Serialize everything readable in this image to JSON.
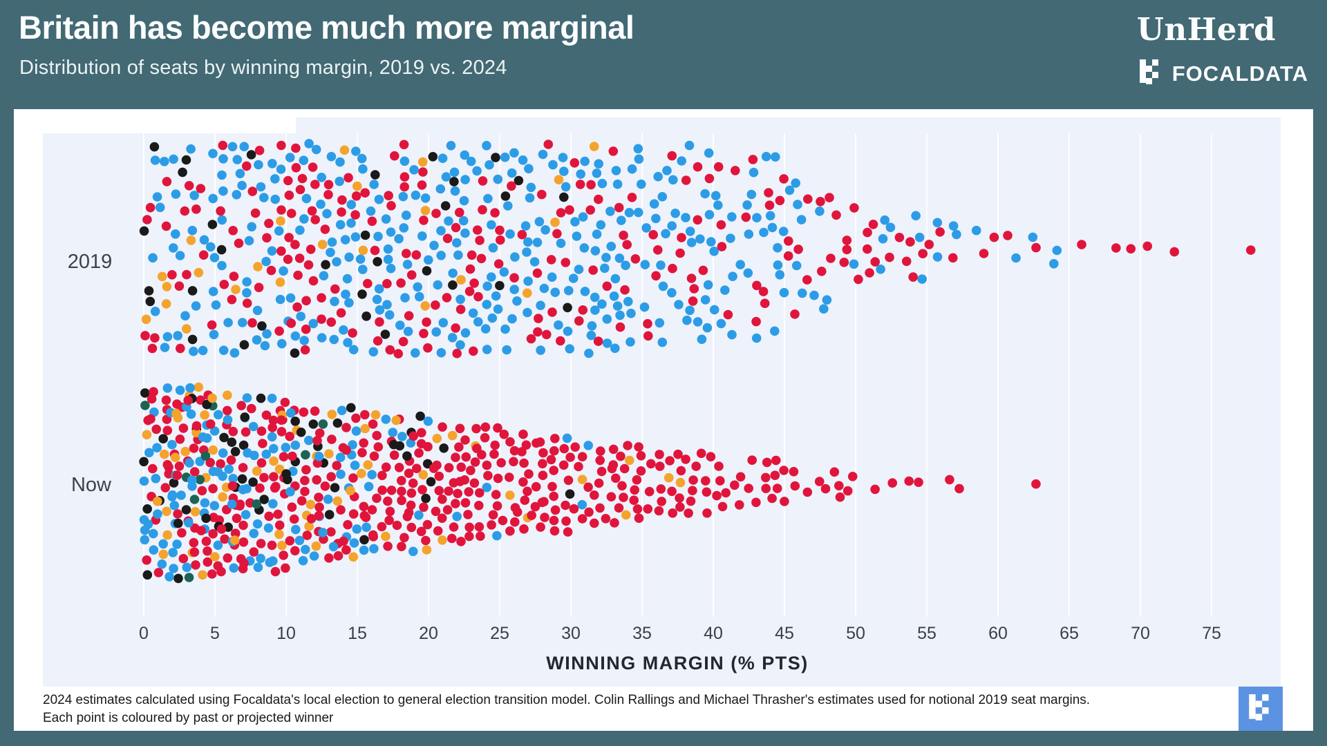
{
  "header": {
    "title": "Britain has become much more marginal",
    "subtitle": "Distribution of seats by winning margin, 2019 vs. 2024",
    "brand_unherd": "UnHerd",
    "brand_focaldata": "FOCALDATA"
  },
  "footer": {
    "line1": "2024 estimates calculated using Focaldata's local election to general election transition model. Colin Rallings and Michael Thrasher's estimates used for notional 2019 seat margins.",
    "line2": "Each point is coloured by past or projected winner"
  },
  "colors": {
    "header_teal": "#426974",
    "card_white": "#ffffff",
    "panel_background": "#eef2fb",
    "gridline": "#ffffff",
    "axis_text": "#3a3f45",
    "badge_blue": "#5b93e2"
  },
  "chart_data": {
    "type": "beeswarm",
    "title": "Britain has become much more marginal",
    "subtitle": "Distribution of seats by winning margin, 2019 vs. 2024",
    "xlabel": "WINNING MARGIN (% PTS)",
    "x_ticks": [
      0,
      5,
      10,
      15,
      20,
      25,
      30,
      35,
      40,
      45,
      50,
      55,
      60,
      65,
      70,
      75
    ],
    "x_range": [
      0,
      80
    ],
    "grid": true,
    "legend": "none",
    "point_unit": "one parliamentary seat, coloured by past or projected winner",
    "color_order": [
      "blue",
      "red",
      "black",
      "orange",
      "green"
    ],
    "party_colors": {
      "blue": "#2d9ce6",
      "red": "#e0153c",
      "black": "#1a1a1a",
      "orange": "#f4a32c",
      "green": "#1d6355"
    },
    "rows": [
      {
        "label": "2019",
        "total_seats": 650,
        "bins": [
          {
            "x0": 0,
            "x1": 5,
            "count": 61,
            "half": 150,
            "w": [
              0.4,
              0.42,
              0.11,
              0.06,
              0.01
            ]
          },
          {
            "x0": 5,
            "x1": 10,
            "count": 66,
            "half": 152,
            "w": [
              0.44,
              0.4,
              0.1,
              0.05,
              0.01
            ]
          },
          {
            "x0": 10,
            "x1": 15,
            "count": 82,
            "half": 153,
            "w": [
              0.48,
              0.4,
              0.08,
              0.04,
              0
            ]
          },
          {
            "x0": 15,
            "x1": 20,
            "count": 74,
            "half": 153,
            "w": [
              0.52,
              0.38,
              0.07,
              0.03,
              0
            ]
          },
          {
            "x0": 20,
            "x1": 25,
            "count": 74,
            "half": 153,
            "w": [
              0.55,
              0.36,
              0.06,
              0.03,
              0
            ]
          },
          {
            "x0": 25,
            "x1": 30,
            "count": 65,
            "half": 153,
            "w": [
              0.6,
              0.33,
              0.05,
              0.02,
              0
            ]
          },
          {
            "x0": 30,
            "x1": 35,
            "count": 65,
            "half": 152,
            "w": [
              0.66,
              0.31,
              0.02,
              0.01,
              0
            ]
          },
          {
            "x0": 35,
            "x1": 40,
            "count": 52,
            "half": 150,
            "w": [
              0.7,
              0.29,
              0.01,
              0,
              0
            ]
          },
          {
            "x0": 40,
            "x1": 45,
            "count": 44,
            "half": 135,
            "w": [
              0.72,
              0.28,
              0,
              0,
              0
            ]
          },
          {
            "x0": 45,
            "x1": 50,
            "count": 26,
            "half": 95,
            "w": [
              0.6,
              0.4,
              0,
              0,
              0
            ]
          },
          {
            "x0": 50,
            "x1": 55,
            "count": 19,
            "half": 48,
            "w": [
              0.42,
              0.58,
              0,
              0,
              0
            ]
          },
          {
            "x0": 55,
            "x1": 60,
            "count": 10,
            "half": 38,
            "w": [
              0.35,
              0.65,
              0,
              0,
              0
            ]
          },
          {
            "x0": 60,
            "x1": 65,
            "count": 6,
            "half": 25,
            "w": [
              0.25,
              0.75,
              0,
              0,
              0
            ]
          },
          {
            "x0": 65,
            "x1": 70,
            "count": 3,
            "half": 12,
            "w": [
              0,
              1,
              0,
              0,
              0
            ]
          },
          {
            "x0": 70,
            "x1": 73,
            "count": 2,
            "half": 8,
            "w": [
              0,
              1,
              0,
              0,
              0
            ]
          },
          {
            "x0": 76,
            "x1": 78,
            "count": 1,
            "half": 4,
            "w": [
              0,
              1,
              0,
              0,
              0
            ]
          }
        ]
      },
      {
        "label": "Now",
        "total_seats": 650,
        "bins": [
          {
            "x0": 0,
            "x1": 5,
            "count": 141,
            "half": 140,
            "w": [
              0.3,
              0.4,
              0.13,
              0.13,
              0.04
            ]
          },
          {
            "x0": 5,
            "x1": 10,
            "count": 115,
            "half": 128,
            "w": [
              0.3,
              0.47,
              0.11,
              0.1,
              0.02
            ]
          },
          {
            "x0": 10,
            "x1": 15,
            "count": 95,
            "half": 112,
            "w": [
              0.24,
              0.57,
              0.09,
              0.09,
              0.01
            ]
          },
          {
            "x0": 15,
            "x1": 20,
            "count": 80,
            "half": 100,
            "w": [
              0.14,
              0.7,
              0.08,
              0.08,
              0
            ]
          },
          {
            "x0": 20,
            "x1": 25,
            "count": 62,
            "half": 85,
            "w": [
              0.08,
              0.8,
              0.05,
              0.07,
              0
            ]
          },
          {
            "x0": 25,
            "x1": 30,
            "count": 52,
            "half": 72,
            "w": [
              0.04,
              0.86,
              0.04,
              0.06,
              0
            ]
          },
          {
            "x0": 30,
            "x1": 35,
            "count": 40,
            "half": 58,
            "w": [
              0.02,
              0.92,
              0.03,
              0.03,
              0
            ]
          },
          {
            "x0": 35,
            "x1": 40,
            "count": 28,
            "half": 45,
            "w": [
              0,
              0.97,
              0,
              0.03,
              0
            ]
          },
          {
            "x0": 40,
            "x1": 45,
            "count": 20,
            "half": 34,
            "w": [
              0,
              1,
              0,
              0,
              0
            ]
          },
          {
            "x0": 45,
            "x1": 50,
            "count": 10,
            "half": 20,
            "w": [
              0,
              1,
              0,
              0,
              0
            ]
          },
          {
            "x0": 50,
            "x1": 55,
            "count": 4,
            "half": 12,
            "w": [
              0,
              1,
              0,
              0,
              0
            ]
          },
          {
            "x0": 55,
            "x1": 58,
            "count": 2,
            "half": 8,
            "w": [
              0,
              1,
              0,
              0,
              0
            ]
          },
          {
            "x0": 61,
            "x1": 63,
            "count": 1,
            "half": 3,
            "w": [
              0,
              1,
              0,
              0,
              0
            ]
          }
        ]
      }
    ]
  }
}
